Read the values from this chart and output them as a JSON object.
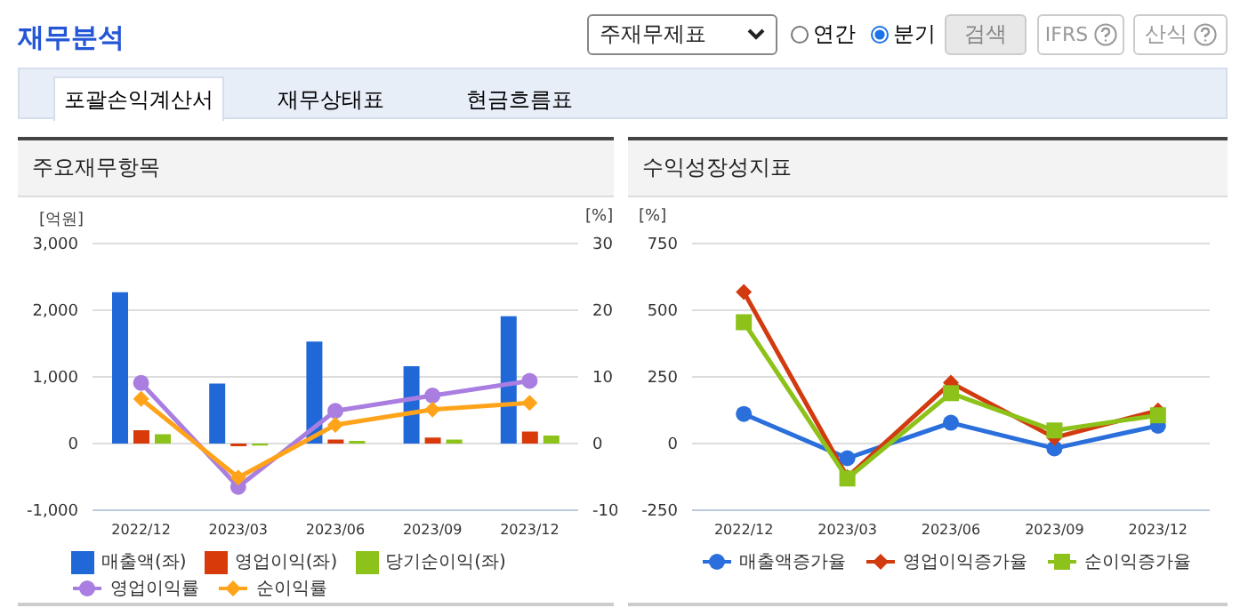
{
  "chart_data": [
    {
      "type": "bar",
      "title": "주요재무항목",
      "ylabel": "[억원]",
      "y2label": "[%]",
      "annotations": [
        "재무분석",
        "주재무제표",
        "연간",
        "분기",
        "검색",
        "IFRS",
        "산식",
        "포괄손익계산서",
        "재무상태표",
        "현금흐름표"
      ],
      "categories": [
        "2022/12",
        "2023/03",
        "2023/06",
        "2023/09",
        "2023/12"
      ],
      "series": [
        {
          "name": "매출액(좌)",
          "color": "#2068d8",
          "values": [
            2270,
            900,
            1530,
            1160,
            1910
          ]
        },
        {
          "name": "영업이익(좌)",
          "color": "#d83a0a",
          "values": [
            200,
            -40,
            60,
            90,
            180
          ]
        },
        {
          "name": "당기순이익(좌)",
          "color": "#8cc21a",
          "values": [
            140,
            -30,
            40,
            60,
            120
          ]
        },
        {
          "name": "영업이익률",
          "type": "line",
          "axis": "y2",
          "marker": "circle",
          "color": "#a97ee0",
          "values": [
            9.1,
            -6.5,
            4.9,
            7.2,
            9.4
          ]
        },
        {
          "name": "순이익률",
          "type": "line",
          "axis": "y2",
          "marker": "diamond",
          "color": "#ffa31a",
          "values": [
            6.7,
            -5.1,
            2.8,
            5.1,
            6.1
          ]
        }
      ],
      "ylim": [
        -1000,
        3000
      ],
      "yticks": [
        {
          "value": -1000,
          "label": "-1,000"
        },
        0,
        {
          "value": 1000,
          "label": "1,000"
        },
        {
          "value": 2000,
          "label": "2,000"
        },
        {
          "value": 3000,
          "label": "3,000"
        }
      ],
      "y2lim": [
        -10,
        30
      ],
      "y2ticks": [
        -10,
        0,
        10,
        20,
        30
      ],
      "grid": "y",
      "legend": "bottom"
    },
    {
      "type": "line",
      "title": "수익성장성지표",
      "ylabel": "[%]",
      "categories": [
        "2022/12",
        "2023/03",
        "2023/06",
        "2023/09",
        "2023/12"
      ],
      "series": [
        {
          "name": "매출액증가율",
          "marker": "circle",
          "color": "#2a6fdb",
          "values": [
            111,
            -55,
            78,
            -18,
            67
          ]
        },
        {
          "name": "영업이익증가율",
          "marker": "diamond",
          "color": "#d23a0f",
          "values": [
            568,
            -126,
            228,
            22,
            124
          ]
        },
        {
          "name": "순이익증가율",
          "marker": "square",
          "color": "#8cc21a",
          "values": [
            455,
            -131,
            189,
            49,
            106
          ]
        }
      ],
      "ylim": [
        -250,
        750
      ],
      "yticks": [
        -250,
        0,
        250,
        500,
        750
      ],
      "grid": "y",
      "legend": "bottom"
    }
  ]
}
